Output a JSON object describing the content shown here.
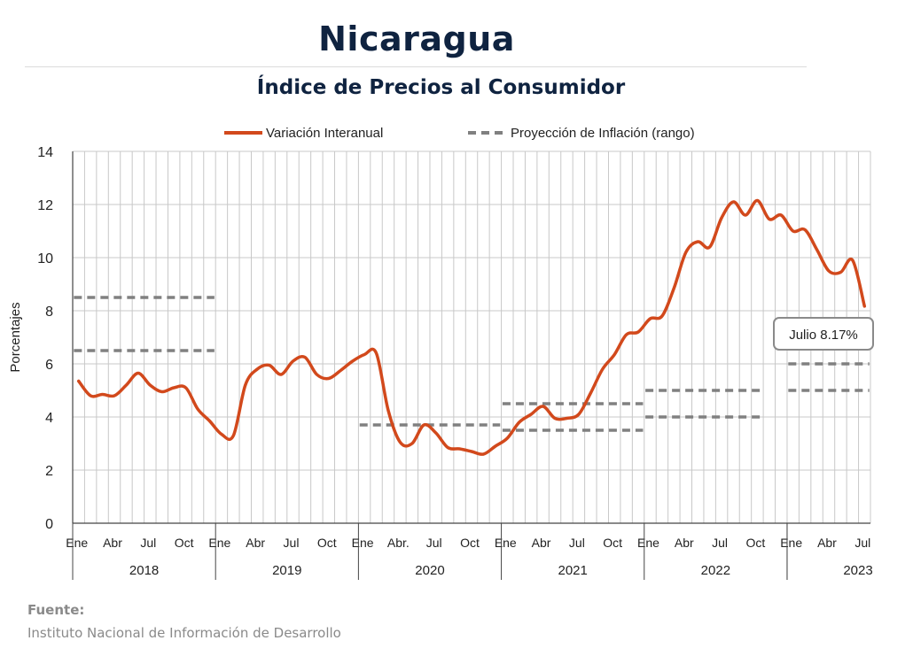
{
  "title": "Nicaragua",
  "subtitle": "Índice de Precios al Consumidor",
  "source": {
    "label": "Fuente:",
    "text": "Instituto Nacional de Información de  Desarrollo"
  },
  "colors": {
    "series": "#d2491c",
    "projection": "#808080",
    "grid": "#c8c8c8",
    "title": "#0f2340"
  },
  "chart_data": {
    "type": "line",
    "ylabel": "Porcentajes",
    "ylim": [
      0,
      14
    ],
    "yticks": [
      0,
      2,
      4,
      6,
      8,
      10,
      12,
      14
    ],
    "grid": true,
    "legend_placement": "top",
    "month_ticks": [
      "Ene",
      "Abr",
      "Jul",
      "Oct",
      "Ene",
      "Abr",
      "Jul",
      "Oct",
      "Ene",
      "Abr.",
      "Jul",
      "Oct",
      "Ene",
      "Abr",
      "Jul",
      "Oct",
      "Ene",
      "Abr",
      "Jul",
      "Oct",
      "Ene",
      "Abr",
      "Jul"
    ],
    "years": [
      "2018",
      "2019",
      "2020",
      "2021",
      "2022",
      "2023"
    ],
    "series": [
      {
        "name": "Variación Interanual",
        "start": "2018-01",
        "values": [
          5.35,
          4.8,
          4.85,
          4.8,
          5.2,
          5.65,
          5.2,
          4.95,
          5.1,
          5.1,
          4.3,
          3.85,
          3.35,
          3.3,
          5.2,
          5.8,
          5.95,
          5.6,
          6.1,
          6.25,
          5.6,
          5.45,
          5.75,
          6.1,
          6.35,
          6.4,
          4.25,
          3.05,
          3.0,
          3.7,
          3.4,
          2.85,
          2.8,
          2.7,
          2.6,
          2.9,
          3.2,
          3.8,
          4.1,
          4.4,
          3.95,
          3.95,
          4.1,
          4.9,
          5.8,
          6.35,
          7.1,
          7.2,
          7.7,
          7.8,
          8.85,
          10.2,
          10.6,
          10.4,
          11.5,
          12.1,
          11.6,
          12.15,
          11.45,
          11.6,
          11.0,
          11.05,
          10.3,
          9.5,
          9.45,
          9.9,
          8.17
        ]
      },
      {
        "name": "Proyección de Inflación (rango)",
        "segments": [
          {
            "from": "2018-01",
            "to": "2018-12",
            "low": 6.5,
            "high": 8.5
          },
          {
            "from": "2020-01",
            "to": "2020-12",
            "low": 3.7,
            "high": 3.7
          },
          {
            "from": "2021-01",
            "to": "2021-12",
            "low": 3.5,
            "high": 4.5
          },
          {
            "from": "2022-01",
            "to": "2022-10",
            "low": 4.0,
            "high": 5.0
          },
          {
            "from": "2023-01",
            "to": "2023-07",
            "low": 5.0,
            "high": 6.0
          }
        ]
      }
    ],
    "annotation": {
      "text": "Julio 8.17%",
      "x": "2023-07",
      "y": 8.17
    }
  }
}
